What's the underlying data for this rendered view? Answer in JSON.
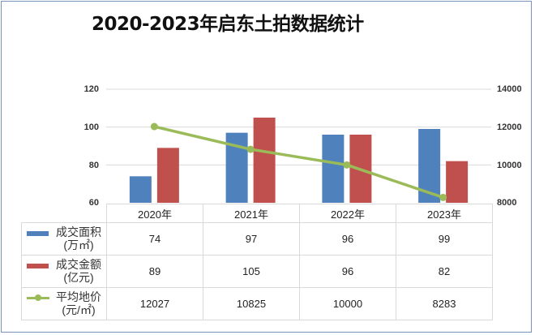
{
  "title": "2020-2023年启东土拍数据统计",
  "colors": {
    "area_bar": "#4f81bd",
    "amount_bar": "#c0504d",
    "price_line": "#9bbb59",
    "frame_border": "#7b94b6",
    "gridline": "#d9d9d9"
  },
  "axes": {
    "left_ticks": [
      "120",
      "100",
      "80",
      "60"
    ],
    "right_ticks": [
      "14000",
      "12000",
      "10000",
      "8000"
    ]
  },
  "table": {
    "categories": [
      "2020年",
      "2021年",
      "2022年",
      "2023年"
    ],
    "rows": [
      {
        "label_line1": "成交面积",
        "label_line2": "(万㎡)",
        "legend": "bar-blue",
        "values": [
          "74",
          "97",
          "96",
          "99"
        ]
      },
      {
        "label_line1": "成交金额",
        "label_line2": "(亿元)",
        "legend": "bar-red",
        "values": [
          "89",
          "105",
          "96",
          "82"
        ]
      },
      {
        "label_line1": "平均地价",
        "label_line2": "(元/㎡)",
        "legend": "line-green",
        "values": [
          "12027",
          "10825",
          "10000",
          "8283"
        ]
      }
    ]
  },
  "chart_data": {
    "type": "bar",
    "title": "2020-2023年启东土拍数据统计",
    "categories": [
      "2020年",
      "2021年",
      "2022年",
      "2023年"
    ],
    "series": [
      {
        "name": "成交面积(万㎡)",
        "type": "bar",
        "axis": "left",
        "color": "#4f81bd",
        "values": [
          74,
          97,
          96,
          99
        ]
      },
      {
        "name": "成交金额(亿元)",
        "type": "bar",
        "axis": "left",
        "color": "#c0504d",
        "values": [
          89,
          105,
          96,
          82
        ]
      },
      {
        "name": "平均地价(元/㎡)",
        "type": "line",
        "axis": "right",
        "color": "#9bbb59",
        "values": [
          12027,
          10825,
          10000,
          8283
        ]
      }
    ],
    "xlabel": "",
    "ylabel": "",
    "ylim": [
      60,
      120
    ],
    "y2lim": [
      8000,
      14000
    ],
    "y_ticks": [
      60,
      80,
      100,
      120
    ],
    "y2_ticks": [
      8000,
      10000,
      12000,
      14000
    ],
    "grid": true,
    "legend_position": "data-table"
  }
}
